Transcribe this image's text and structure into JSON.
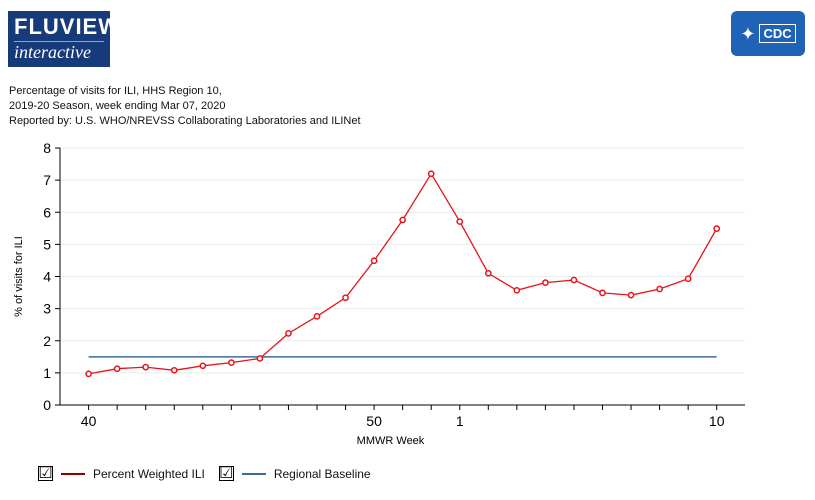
{
  "logo": {
    "line1": "FLUVIEW",
    "line2": "interactive"
  },
  "cdc_logo": {
    "text": "CDC",
    "emblem_icon": "hhs-eagle-icon"
  },
  "header": {
    "line1": "Percentage of visits for ILI, HHS Region 10,",
    "line2": "2019-20 Season, week ending Mar 07, 2020",
    "line3": "Reported by: U.S. WHO/NREVSS Collaborating Laboratories and ILINet"
  },
  "legend": {
    "items": [
      {
        "label": "Percent Weighted ILI",
        "checked": "☑",
        "color": "#8b0000"
      },
      {
        "label": "Regional Baseline",
        "checked": "☑",
        "color": "#3d6a99"
      }
    ]
  },
  "chart_data": {
    "type": "line",
    "title": "",
    "xlabel": "MMWR Week",
    "ylabel": "% of visits for ILI",
    "x": [
      "40",
      "41",
      "42",
      "43",
      "44",
      "45",
      "46",
      "47",
      "48",
      "49",
      "50",
      "51",
      "52",
      "1",
      "2",
      "3",
      "4",
      "5",
      "6",
      "7",
      "8",
      "9",
      "10"
    ],
    "x_tick_labels": [
      {
        "week": "40",
        "label": "40"
      },
      {
        "week": "50",
        "label": "50"
      },
      {
        "week": "1",
        "label": "1"
      },
      {
        "week": "10",
        "label": "10"
      }
    ],
    "ylim": [
      0,
      8
    ],
    "yticks": [
      0,
      1,
      2,
      3,
      4,
      5,
      6,
      7,
      8
    ],
    "grid": true,
    "legend_position": "bottom-left",
    "series": [
      {
        "name": "Percent Weighted ILI",
        "color": "#e8121a",
        "values": [
          0.97,
          1.13,
          1.18,
          1.08,
          1.22,
          1.32,
          1.45,
          2.23,
          2.76,
          3.34,
          4.49,
          5.76,
          7.2,
          5.71,
          4.1,
          3.57,
          3.81,
          3.89,
          3.49,
          3.42,
          3.61,
          3.93,
          5.49
        ]
      },
      {
        "name": "Regional Baseline",
        "color": "#3d6a99",
        "values": [
          1.5,
          1.5,
          1.5,
          1.5,
          1.5,
          1.5,
          1.5,
          1.5,
          1.5,
          1.5,
          1.5,
          1.5,
          1.5,
          1.5,
          1.5,
          1.5,
          1.5,
          1.5,
          1.5,
          1.5,
          1.5,
          1.5,
          1.5
        ]
      }
    ]
  }
}
